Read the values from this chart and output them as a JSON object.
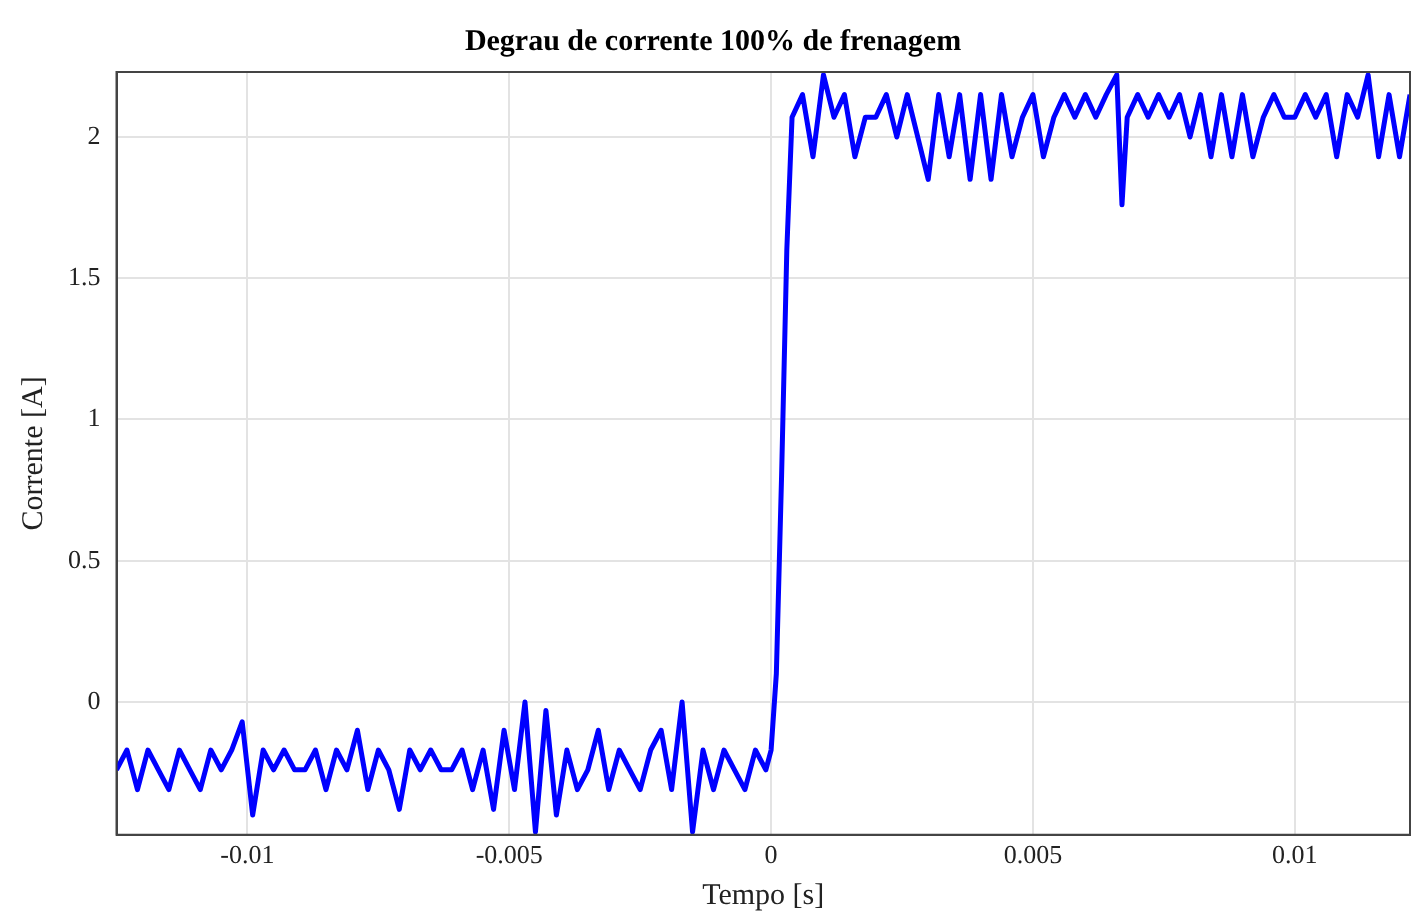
{
  "chart_data": {
    "type": "line",
    "title": "Degrau de corrente 100% de frenagem",
    "xlabel": "Tempo [s]",
    "ylabel": "Corrente [A]",
    "xlim": [
      -0.0125,
      0.0122
    ],
    "ylim": [
      -0.47,
      2.23
    ],
    "xticks": [
      -0.01,
      -0.005,
      0,
      0.005,
      0.01
    ],
    "yticks": [
      0,
      0.5,
      1,
      1.5,
      2
    ],
    "grid": true,
    "legend": false,
    "marker": "none",
    "line_style": "solid",
    "series": [
      {
        "color": "#0000ff",
        "x": [
          -0.0125,
          -0.0123,
          -0.0121,
          -0.0119,
          -0.0117,
          -0.0115,
          -0.0113,
          -0.0111,
          -0.0109,
          -0.0107,
          -0.0105,
          -0.0103,
          -0.0101,
          -0.0099,
          -0.0097,
          -0.0095,
          -0.0093,
          -0.0091,
          -0.0089,
          -0.0087,
          -0.0085,
          -0.0083,
          -0.0081,
          -0.0079,
          -0.0077,
          -0.0075,
          -0.0073,
          -0.0071,
          -0.0069,
          -0.0067,
          -0.0065,
          -0.0063,
          -0.0061,
          -0.0059,
          -0.0057,
          -0.0055,
          -0.0053,
          -0.0051,
          -0.0049,
          -0.0047,
          -0.0045,
          -0.0043,
          -0.0041,
          -0.0039,
          -0.0037,
          -0.0035,
          -0.0033,
          -0.0031,
          -0.0029,
          -0.0027,
          -0.0025,
          -0.0023,
          -0.0021,
          -0.0019,
          -0.0017,
          -0.0015,
          -0.0013,
          -0.0011,
          -0.0009,
          -0.0007,
          -0.0005,
          -0.0003,
          -0.0001,
          0,
          0.0001,
          0.0002,
          0.0003,
          0.0004,
          0.0006,
          0.0008,
          0.001,
          0.0012,
          0.0014,
          0.0016,
          0.0018,
          0.002,
          0.0022,
          0.0024,
          0.0026,
          0.0028,
          0.003,
          0.0032,
          0.0034,
          0.0036,
          0.0038,
          0.004,
          0.0042,
          0.0044,
          0.0046,
          0.0048,
          0.005,
          0.0052,
          0.0054,
          0.0056,
          0.0058,
          0.006,
          0.0062,
          0.0064,
          0.0066,
          0.0067,
          0.0068,
          0.007,
          0.0072,
          0.0074,
          0.0076,
          0.0078,
          0.008,
          0.0082,
          0.0084,
          0.0086,
          0.0088,
          0.009,
          0.0092,
          0.0094,
          0.0096,
          0.0098,
          0.01,
          0.0102,
          0.0104,
          0.0106,
          0.0108,
          0.011,
          0.0112,
          0.0114,
          0.0116,
          0.0118,
          0.012,
          0.0122
        ],
        "values": [
          -0.24,
          -0.17,
          -0.31,
          -0.17,
          -0.24,
          -0.31,
          -0.17,
          -0.24,
          -0.31,
          -0.17,
          -0.24,
          -0.17,
          -0.07,
          -0.4,
          -0.17,
          -0.24,
          -0.17,
          -0.24,
          -0.24,
          -0.17,
          -0.31,
          -0.17,
          -0.24,
          -0.1,
          -0.31,
          -0.17,
          -0.24,
          -0.38,
          -0.17,
          -0.24,
          -0.17,
          -0.24,
          -0.24,
          -0.17,
          -0.31,
          -0.17,
          -0.38,
          -0.1,
          -0.31,
          0,
          -0.46,
          -0.03,
          -0.4,
          -0.17,
          -0.31,
          -0.24,
          -0.1,
          -0.31,
          -0.17,
          -0.24,
          -0.31,
          -0.17,
          -0.1,
          -0.31,
          0,
          -0.46,
          -0.17,
          -0.31,
          -0.17,
          -0.24,
          -0.31,
          -0.17,
          -0.24,
          -0.17,
          0.1,
          0.8,
          1.6,
          2.07,
          2.15,
          1.93,
          2.22,
          2.07,
          2.15,
          1.93,
          2.07,
          2.07,
          2.15,
          2,
          2.15,
          2,
          1.85,
          2.15,
          1.93,
          2.15,
          1.85,
          2.15,
          1.85,
          2.15,
          1.93,
          2.07,
          2.15,
          1.93,
          2.07,
          2.15,
          2.07,
          2.15,
          2.07,
          2.15,
          2.22,
          1.76,
          2.07,
          2.15,
          2.07,
          2.15,
          2.07,
          2.15,
          2,
          2.15,
          1.93,
          2.15,
          1.93,
          2.15,
          1.93,
          2.07,
          2.15,
          2.07,
          2.07,
          2.15,
          2.07,
          2.15,
          1.93,
          2.15,
          2.07,
          2.22,
          1.93,
          2.15,
          1.93,
          2.15
        ]
      }
    ]
  }
}
